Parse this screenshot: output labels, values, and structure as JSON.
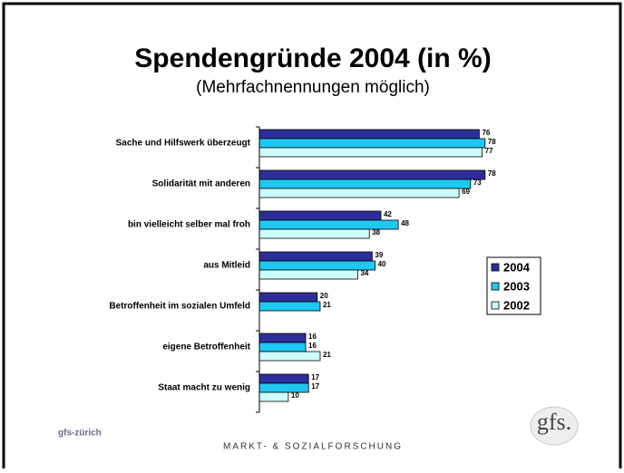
{
  "chart_data": {
    "type": "bar",
    "orientation": "horizontal",
    "title": "Spendengründe 2004 (in %)",
    "subtitle": "(Mehrfachnennungen möglich)",
    "categories": [
      "Sache und Hilfswerk überzeugt",
      "Solidarität mit anderen",
      "bin vielleicht selber mal froh",
      "aus Mitleid",
      "Betroffenheit im sozialen Umfeld",
      "eigene Betroffenheit",
      "Staat macht zu wenig"
    ],
    "series": [
      {
        "name": "2004",
        "color": "#2e2e9a",
        "values": [
          76,
          78,
          42,
          39,
          20,
          16,
          17
        ]
      },
      {
        "name": "2003",
        "color": "#1ec8f0",
        "values": [
          78,
          73,
          48,
          40,
          21,
          16,
          17
        ]
      },
      {
        "name": "2002",
        "color": "#ccffff",
        "values": [
          77,
          69,
          38,
          34,
          null,
          21,
          10
        ]
      }
    ],
    "xlim": [
      0,
      100
    ],
    "legend": "right"
  },
  "footer": {
    "organization": "gfs-zürich",
    "tagline": "MARKT- & SOZIALFORSCHUNG",
    "logo": "gfs."
  }
}
